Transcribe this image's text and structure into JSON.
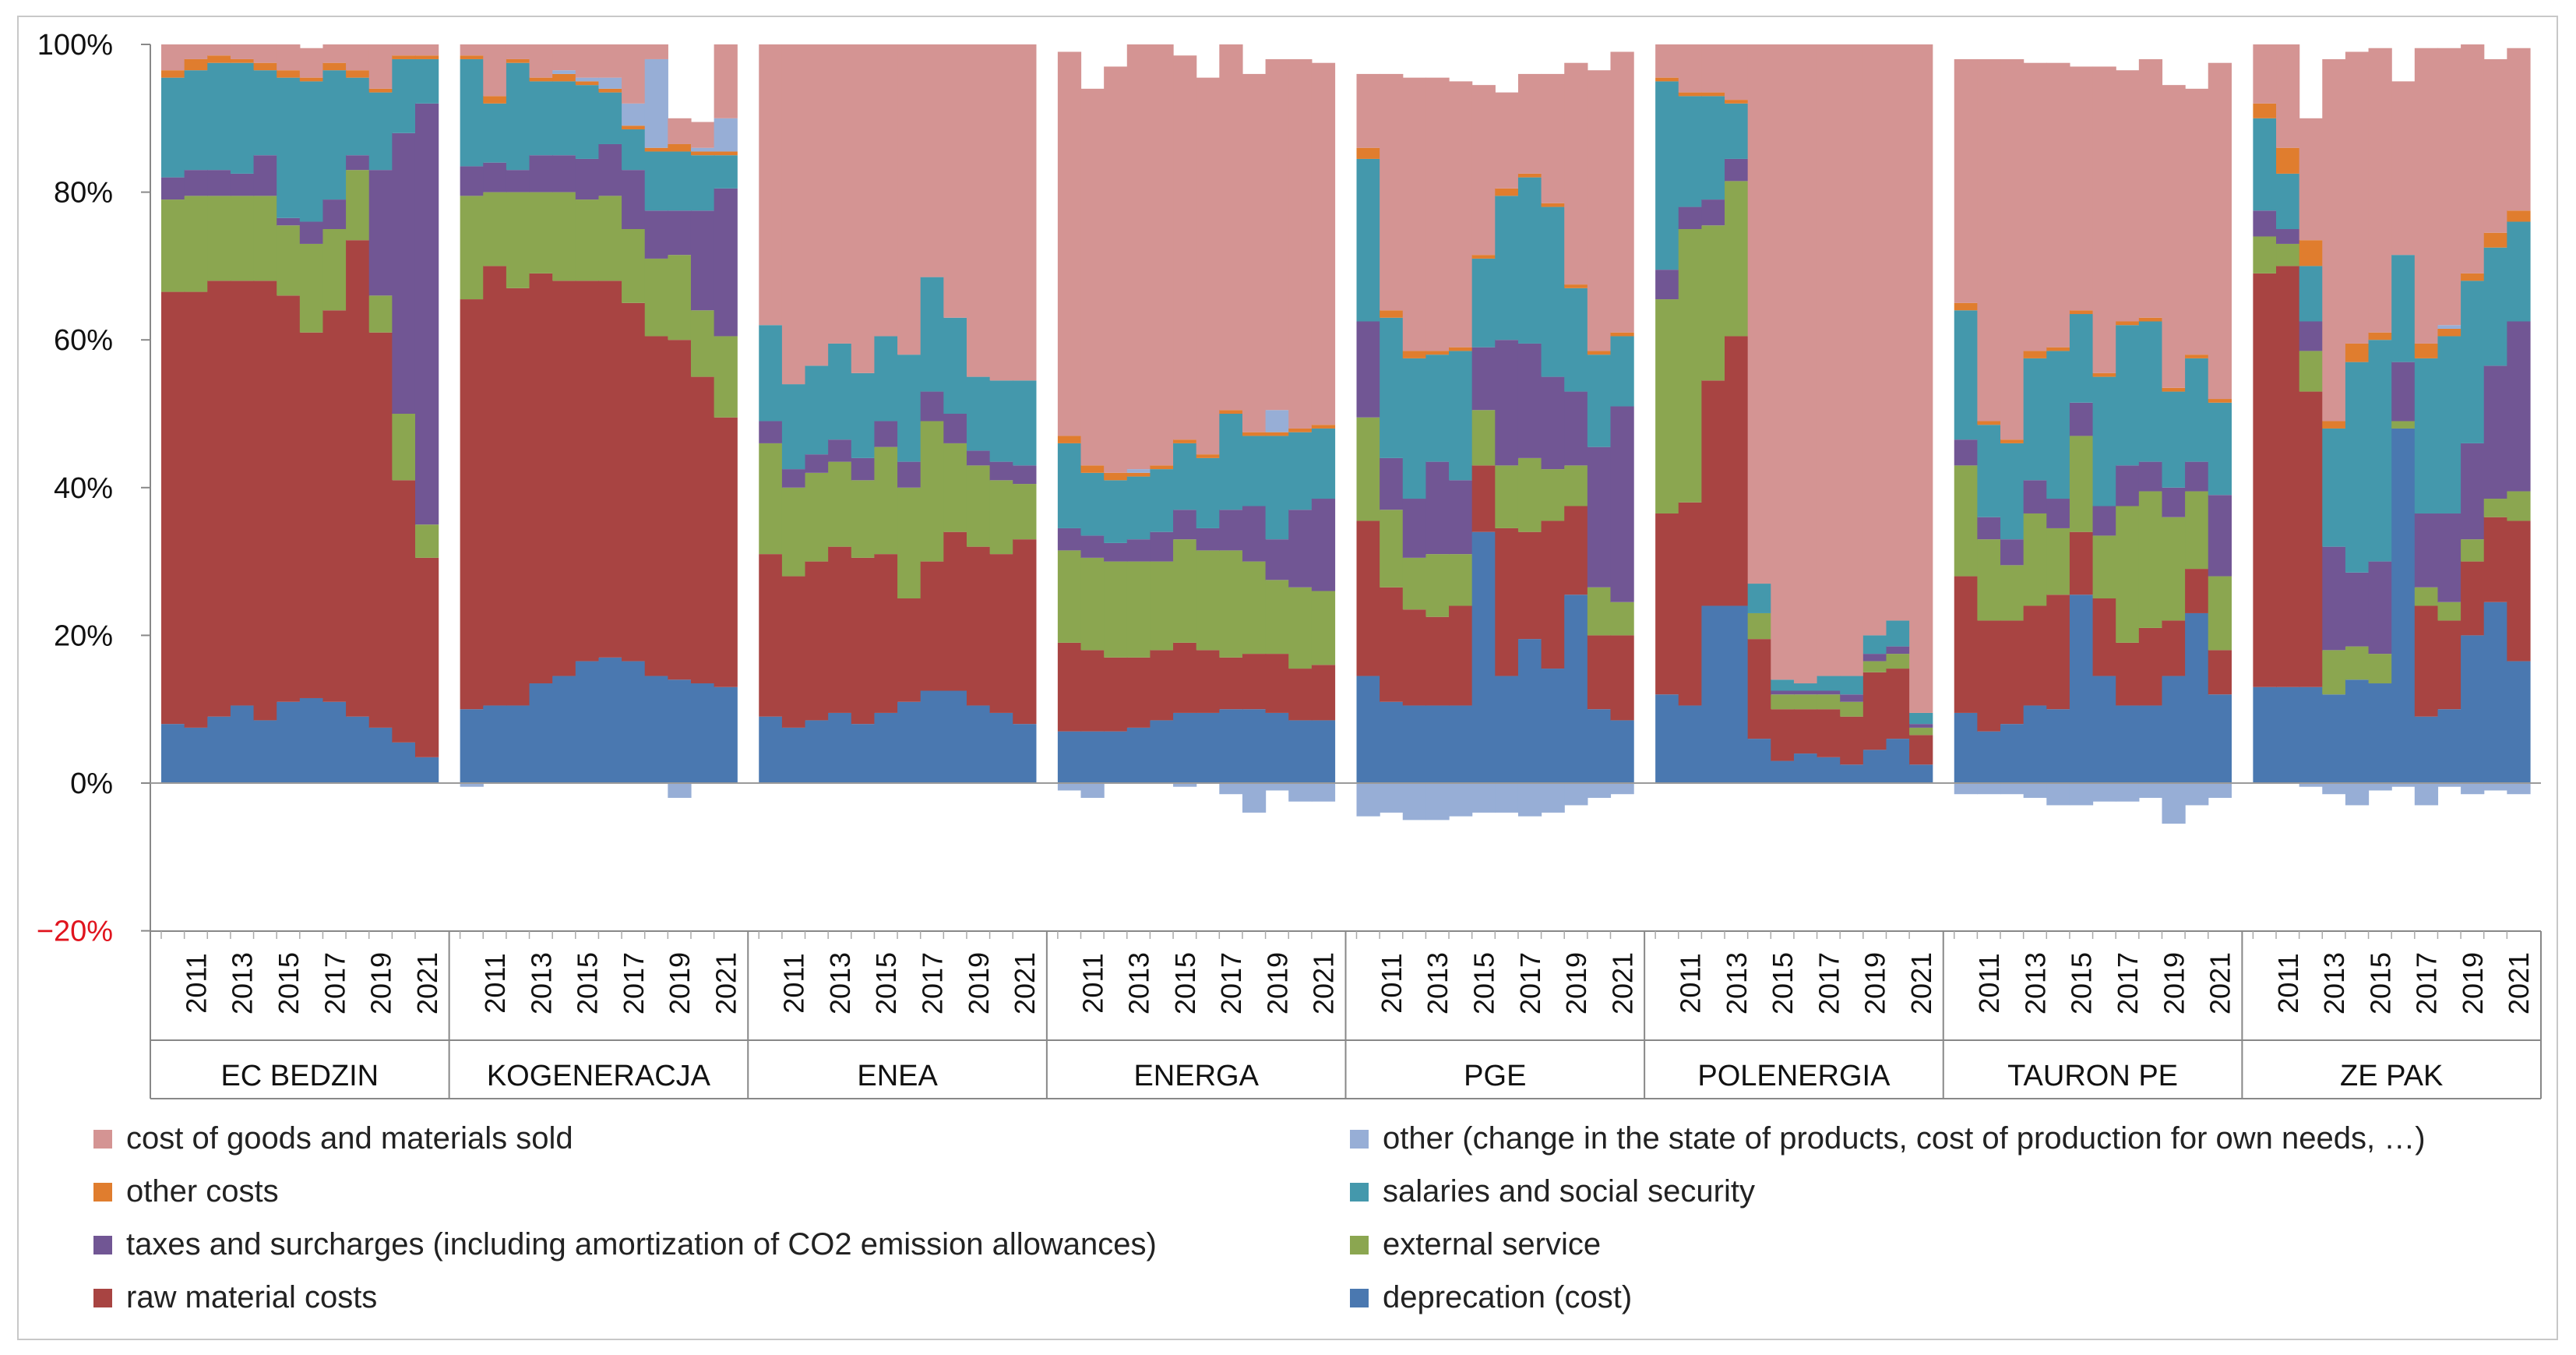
{
  "chart_data": {
    "type": "bar",
    "stacked": true,
    "title": "",
    "xlabel": "",
    "ylabel": "",
    "ylim": [
      -20,
      100
    ],
    "yticks": [
      "100%",
      "80%",
      "60%",
      "40%",
      "20%",
      "0%",
      "−20%"
    ],
    "ytick_values": [
      100,
      80,
      60,
      40,
      20,
      0,
      -20
    ],
    "years": [
      2010,
      2011,
      2012,
      2013,
      2014,
      2015,
      2016,
      2017,
      2018,
      2019,
      2020,
      2021
    ],
    "year_tick_labels": [
      "2011",
      "2013",
      "2015",
      "2017",
      "2019",
      "2021"
    ],
    "series": [
      {
        "key": "dep",
        "name": "deprecation (cost)",
        "color": "#4a78b0"
      },
      {
        "key": "raw",
        "name": "raw material costs",
        "color": "#a84442"
      },
      {
        "key": "ext",
        "name": "external service",
        "color": "#8ba650"
      },
      {
        "key": "tax",
        "name": "taxes and surcharges (including amortization of CO2 emission allowances)",
        "color": "#715694"
      },
      {
        "key": "sal",
        "name": "salaries and social security",
        "color": "#4498ac"
      },
      {
        "key": "oth",
        "name": "other costs",
        "color": "#e07d2e"
      },
      {
        "key": "chg",
        "name": "other (change in the state of products, cost of production for own needs, …)",
        "color": "#97aed6"
      },
      {
        "key": "cogs",
        "name": "cost of goods and materials sold",
        "color": "#d49493"
      }
    ],
    "legend_order": [
      "cogs",
      "chg",
      "oth",
      "sal",
      "tax",
      "ext",
      "raw",
      "dep"
    ],
    "groups": [
      {
        "name": "EC BEDZIN",
        "dep": [
          8,
          7.5,
          9,
          10.5,
          8.5,
          11,
          11.5,
          11,
          9,
          7.5,
          5.5,
          3.5
        ],
        "raw": [
          58.5,
          59,
          59,
          57.5,
          59.5,
          55,
          49.5,
          53,
          64.5,
          53.5,
          35.5,
          27
        ],
        "ext": [
          12.5,
          13,
          11.5,
          11.5,
          11.5,
          9.5,
          12,
          11,
          9.5,
          5,
          9,
          4.5
        ],
        "tax": [
          3,
          3.5,
          3.5,
          3,
          5.5,
          1,
          3,
          4,
          2,
          17,
          38,
          57
        ],
        "sal": [
          13.5,
          13.5,
          14.5,
          15,
          11.5,
          19,
          19,
          17.5,
          10.5,
          10.5,
          10,
          6
        ],
        "oth": [
          1,
          1.5,
          1,
          0.5,
          1,
          1,
          0.5,
          1,
          1,
          0.5,
          0.5,
          0.5
        ],
        "chg": [
          0,
          0,
          0,
          0,
          0,
          0,
          0,
          0,
          0,
          0,
          0,
          0
        ],
        "cogs": [
          3.5,
          2,
          1.5,
          2,
          2.5,
          3.5,
          4,
          2.5,
          3.5,
          6,
          1.5,
          1.5
        ]
      },
      {
        "name": "KOGENERACJA",
        "dep": [
          10,
          10.5,
          10.5,
          13.5,
          14.5,
          16.5,
          17,
          16.5,
          14.5,
          14,
          13.5,
          13
        ],
        "raw": [
          55.5,
          59.5,
          56.5,
          55.5,
          53.5,
          51.5,
          51,
          48.5,
          46,
          46,
          41.5,
          36.5
        ],
        "ext": [
          14,
          10,
          13,
          11,
          12,
          11,
          11.5,
          10,
          10.5,
          11.5,
          9,
          11
        ],
        "tax": [
          4,
          4,
          3,
          5,
          5,
          5.5,
          7,
          8,
          6.5,
          6,
          13.5,
          20
        ],
        "sal": [
          14.5,
          8,
          14.5,
          10,
          10,
          10,
          7,
          5.5,
          8,
          8,
          7.5,
          4.5
        ],
        "oth": [
          0.5,
          1,
          0.5,
          0.5,
          1,
          0.5,
          0.5,
          0.5,
          0.5,
          1,
          0.5,
          0.5
        ],
        "chg": [
          0,
          0,
          0,
          0,
          0.5,
          0.5,
          1.5,
          3,
          12,
          0,
          0.5,
          4.5
        ],
        "cogs": [
          1.5,
          7,
          2,
          4.5,
          3.5,
          4.5,
          4.5,
          8,
          2,
          3.5,
          3.5,
          10
        ],
        "neg": [
          -0.5,
          0,
          0,
          0,
          0,
          0,
          0,
          0,
          0,
          -2,
          0,
          0
        ]
      },
      {
        "name": "ENEA",
        "dep": [
          9,
          7.5,
          8.5,
          9.5,
          8,
          9.5,
          11,
          12.5,
          12.5,
          10.5,
          9.5,
          8
        ],
        "raw": [
          22,
          20.5,
          21.5,
          22.5,
          22.5,
          21.5,
          14,
          17.5,
          21.5,
          21.5,
          21.5,
          25
        ],
        "ext": [
          15,
          12,
          12,
          11.5,
          10.5,
          14.5,
          15,
          19,
          12,
          11,
          10,
          7.5
        ],
        "tax": [
          3,
          2.5,
          2.5,
          3,
          3,
          3.5,
          3.5,
          4,
          4,
          2,
          2.5,
          2.5
        ],
        "sal": [
          13,
          11.5,
          12,
          13,
          11.5,
          11.5,
          14.5,
          15.5,
          13,
          10,
          11,
          11.5
        ],
        "oth": [
          0,
          0,
          0,
          0,
          0,
          0,
          0,
          0,
          0,
          0,
          0,
          0
        ],
        "chg": [
          0,
          0,
          0,
          0,
          0,
          0,
          0,
          0,
          0,
          0,
          0,
          0
        ],
        "cogs": [
          38,
          46,
          43.5,
          40.5,
          44.5,
          39.5,
          42,
          31.5,
          37,
          45,
          45.5,
          45.5
        ]
      },
      {
        "name": "ENERGA",
        "dep": [
          7,
          7,
          7,
          7.5,
          8.5,
          9.5,
          9.5,
          10,
          10,
          9.5,
          8.5,
          8.5
        ],
        "raw": [
          12,
          11,
          10,
          9.5,
          9.5,
          9.5,
          8.5,
          7,
          7.5,
          8,
          7,
          7.5
        ],
        "ext": [
          12.5,
          12.5,
          13,
          13,
          12,
          14,
          13.5,
          14.5,
          12.5,
          10,
          11,
          10
        ],
        "tax": [
          3,
          3,
          2.5,
          3,
          4,
          4,
          3,
          5.5,
          7.5,
          5.5,
          10.5,
          12.5
        ],
        "sal": [
          11.5,
          8.5,
          8.5,
          8.5,
          8.5,
          9,
          9.5,
          13,
          9.5,
          14,
          10.5,
          9.5
        ],
        "oth": [
          1,
          1,
          1,
          0.5,
          0.5,
          0.5,
          0.5,
          0.5,
          0.5,
          0.5,
          0.5,
          0.5
        ],
        "chg": [
          0,
          0,
          0,
          0.5,
          0,
          0,
          0,
          0,
          0,
          3,
          0,
          0
        ],
        "cogs": [
          52,
          51,
          55,
          57.5,
          57,
          52,
          51,
          49.5,
          48.5,
          47.5,
          50,
          49
        ],
        "neg": [
          -1,
          -2,
          0,
          0,
          0,
          -0.5,
          0,
          -1.5,
          -4,
          -1,
          -2.5,
          -2.5
        ]
      },
      {
        "name": "PGE",
        "dep": [
          14.5,
          11,
          10.5,
          10.5,
          10.5,
          34,
          14.5,
          19.5,
          15.5,
          25.5,
          10,
          8.5
        ],
        "raw": [
          21,
          15.5,
          13,
          12,
          13.5,
          9,
          20,
          14.5,
          20,
          12,
          10,
          11.5
        ],
        "ext": [
          14,
          10.5,
          7,
          8.5,
          7,
          7.5,
          8.5,
          10,
          7,
          5.5,
          6.5,
          4.5
        ],
        "tax": [
          13,
          7,
          8,
          12.5,
          10,
          8.5,
          17,
          15.5,
          12.5,
          10,
          19,
          26.5
        ],
        "sal": [
          22,
          19,
          19,
          14.5,
          17.5,
          12,
          19.5,
          22.5,
          23,
          14,
          12.5,
          9.5
        ],
        "oth": [
          1.5,
          1,
          1,
          0.5,
          0.5,
          0.5,
          1,
          0.5,
          0.5,
          0.5,
          0.5,
          0.5
        ],
        "chg": [
          0,
          0,
          0,
          0,
          0,
          0,
          0,
          0,
          0,
          0,
          0,
          0
        ],
        "cogs": [
          10,
          32,
          37,
          37,
          36,
          23,
          13,
          13.5,
          17.5,
          30,
          38,
          38
        ],
        "neg": [
          -4.5,
          -4,
          -5,
          -5,
          -4.5,
          -4,
          -4,
          -4.5,
          -4,
          -3,
          -2,
          -1.5
        ]
      },
      {
        "name": "POLENERGIA",
        "dep": [
          12,
          10.5,
          24,
          24,
          6,
          3,
          4,
          3.5,
          2.5,
          4.5,
          6,
          2.5
        ],
        "raw": [
          24.5,
          27.5,
          30.5,
          36.5,
          13.5,
          7,
          6,
          6.5,
          6.5,
          10.5,
          9.5,
          4
        ],
        "ext": [
          29,
          37,
          21,
          21,
          3.5,
          2,
          2,
          2,
          2,
          1.5,
          2,
          1
        ],
        "tax": [
          4,
          3,
          3.5,
          3,
          0,
          0.5,
          0.5,
          0.5,
          1,
          1,
          1,
          0.5
        ],
        "sal": [
          25.5,
          15,
          14,
          7.5,
          4,
          1.5,
          1,
          2,
          2.5,
          2.5,
          3.5,
          1.5
        ],
        "oth": [
          0.5,
          0.5,
          0.5,
          0.5,
          0,
          0,
          0,
          0,
          0,
          0,
          0,
          0
        ],
        "chg": [
          0,
          0,
          0,
          0,
          0,
          0,
          0,
          0,
          0,
          0,
          0,
          0
        ],
        "cogs": [
          4.5,
          6.5,
          6.5,
          7.5,
          73,
          86,
          86.5,
          85.5,
          85.5,
          80,
          78,
          90.5
        ]
      },
      {
        "name": "TAURON PE",
        "dep": [
          9.5,
          7,
          8,
          10.5,
          10,
          25.5,
          14.5,
          10.5,
          10.5,
          14.5,
          23,
          12
        ],
        "raw": [
          18.5,
          15,
          14,
          13.5,
          15.5,
          8.5,
          10.5,
          8.5,
          10.5,
          7.5,
          6,
          6
        ],
        "ext": [
          15,
          11,
          7.5,
          12.5,
          9,
          13,
          8.5,
          18.5,
          18.5,
          14,
          10.5,
          10
        ],
        "tax": [
          3.5,
          3,
          3.5,
          4.5,
          4,
          4.5,
          4,
          5.5,
          4,
          4,
          4,
          11
        ],
        "sal": [
          17.5,
          12.5,
          13,
          16.5,
          20,
          12,
          17.5,
          19,
          19,
          13,
          14,
          12.5
        ],
        "oth": [
          1,
          0.5,
          0.5,
          1,
          0.5,
          0.5,
          0.5,
          0.5,
          0.5,
          0.5,
          0.5,
          0.5
        ],
        "chg": [
          0,
          0,
          0,
          0,
          0,
          0,
          0,
          0,
          0,
          0,
          0,
          0
        ],
        "cogs": [
          33,
          49,
          51.5,
          39,
          38.5,
          33,
          41.5,
          34,
          35,
          41,
          36,
          45.5
        ],
        "neg": [
          -1.5,
          -1.5,
          -1.5,
          -2,
          -3,
          -3,
          -2.5,
          -2.5,
          -2,
          -5.5,
          -3,
          -2
        ]
      },
      {
        "name": "ZE PAK",
        "dep": [
          13,
          13,
          13,
          12,
          14,
          13.5,
          48,
          9,
          10,
          20,
          24.5,
          16.5
        ],
        "raw": [
          56,
          57,
          40,
          0,
          0,
          0,
          0,
          15,
          12,
          10,
          11.5,
          19
        ],
        "ext": [
          5,
          3,
          5.5,
          6,
          4.5,
          4,
          1,
          2.5,
          2.5,
          3,
          2.5,
          4
        ],
        "tax": [
          3.5,
          2,
          4,
          14,
          10,
          12.5,
          8,
          10,
          12,
          13,
          18,
          23
        ],
        "sal": [
          12.5,
          7.5,
          7.5,
          16,
          28.5,
          30,
          14.5,
          21,
          24,
          22,
          16,
          13.5
        ],
        "oth": [
          2,
          3.5,
          3.5,
          1,
          2.5,
          1,
          0,
          2,
          1,
          1,
          2,
          1.5
        ],
        "chg": [
          0,
          0,
          0,
          0,
          0,
          0,
          0,
          0,
          0.5,
          0,
          0,
          0
        ],
        "cogs": [
          8,
          14,
          16.5,
          49,
          39.5,
          38.5,
          23.5,
          40,
          37.5,
          31,
          23.5,
          22
        ],
        "neg": [
          0,
          0,
          -0.5,
          -1.5,
          -3,
          -1,
          -0.5,
          -3,
          -0.5,
          -1.5,
          -1,
          -1.5
        ]
      }
    ]
  }
}
